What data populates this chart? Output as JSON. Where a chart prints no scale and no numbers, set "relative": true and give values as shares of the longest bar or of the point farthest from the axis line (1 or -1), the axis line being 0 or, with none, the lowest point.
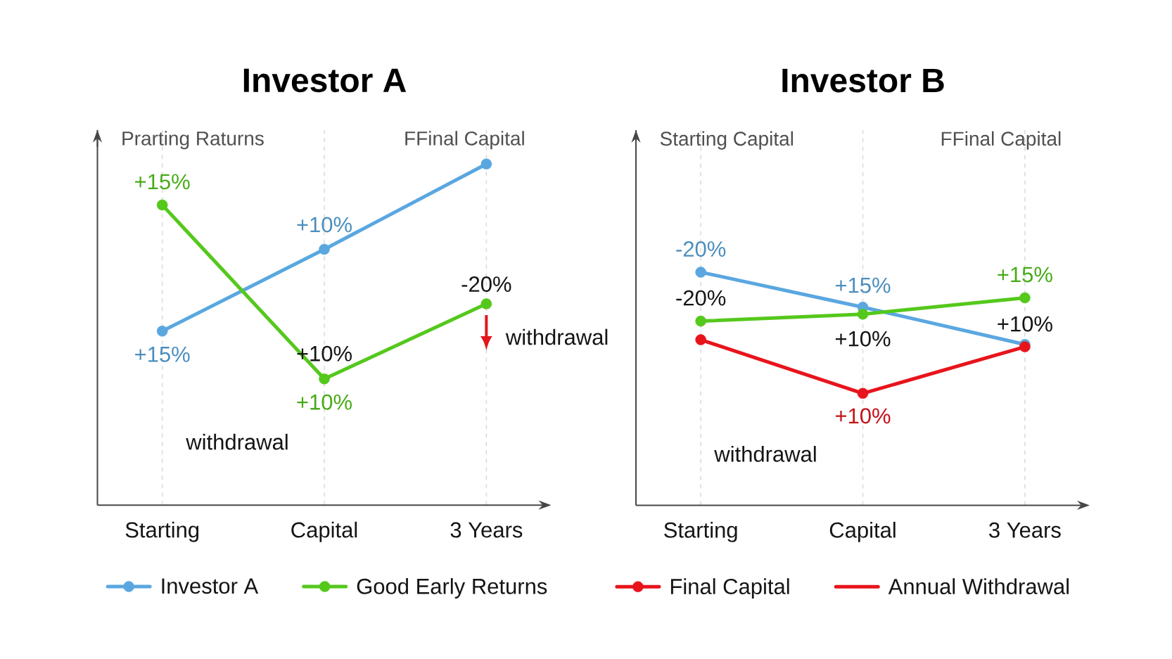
{
  "chart_data": [
    {
      "type": "line",
      "title": "Investor A",
      "categories": [
        "Starting",
        "Capital",
        "3 Years"
      ],
      "relative": true,
      "marker": "circle",
      "grid": "x",
      "legend": "bottom",
      "tick_labels": "x",
      "series": [
        {
          "name": "Investor A",
          "color": "#5aa7e0",
          "values": [
            0.51,
            0.75,
            1
          ]
        },
        {
          "name": "Good Early Returns",
          "color": "#55c81c",
          "values": [
            0.88,
            0.37,
            0.59
          ]
        }
      ],
      "annotations": [
        "Prarting Raturns",
        "FFinal Capital",
        {
          "text": "+15%",
          "x": "Starting",
          "y": 0.88
        },
        {
          "text": "+15%",
          "x": "Starting",
          "y": 0.51
        },
        {
          "text": "+10%",
          "x": "Capital",
          "y": 0.75
        },
        {
          "text": "+10%",
          "x": "Capital",
          "y": 0.37
        },
        {
          "text": "+10%",
          "x": "Capital",
          "y": 0.37
        },
        {
          "text": "-20%",
          "x": "3 Years",
          "y": 0.59
        },
        {
          "text": "withdrawal",
          "x": "3 Years",
          "y": 0.59
        },
        "withdrawal"
      ]
    },
    {
      "type": "line",
      "title": "Investor B",
      "categories": [
        "Starting",
        "Capital",
        "3 Years"
      ],
      "relative": true,
      "marker": "circle",
      "grid": "x",
      "legend": "bottom",
      "tick_labels": "x",
      "series": [
        {
          "color": "#5aa7e0",
          "values": [
            1,
            0.85,
            0.69
          ]
        },
        {
          "color": "#55c81c",
          "values": [
            0.79,
            0.82,
            0.89
          ]
        },
        {
          "name": "Final Capital",
          "color": "#e8141c",
          "values": [
            0.71,
            0.48,
            0.68
          ]
        }
      ],
      "annotations": [
        "Starting Capital",
        "FFinal Capital",
        {
          "text": "-20%",
          "x": "Starting",
          "y": 1
        },
        {
          "text": "-20%",
          "x": "Starting",
          "y": 0.79
        },
        {
          "text": "+15%",
          "x": "Capital",
          "y": 0.85
        },
        {
          "text": "+10%",
          "x": "Capital",
          "y": 0.82
        },
        {
          "text": "+10%",
          "x": "Capital",
          "y": 0.48
        },
        {
          "text": "+15%",
          "x": "3 Years",
          "y": 0.89
        },
        {
          "text": "+10%",
          "x": "3 Years",
          "y": 0.68
        },
        "withdrawal",
        "Annual Withdrawal"
      ]
    }
  ]
}
